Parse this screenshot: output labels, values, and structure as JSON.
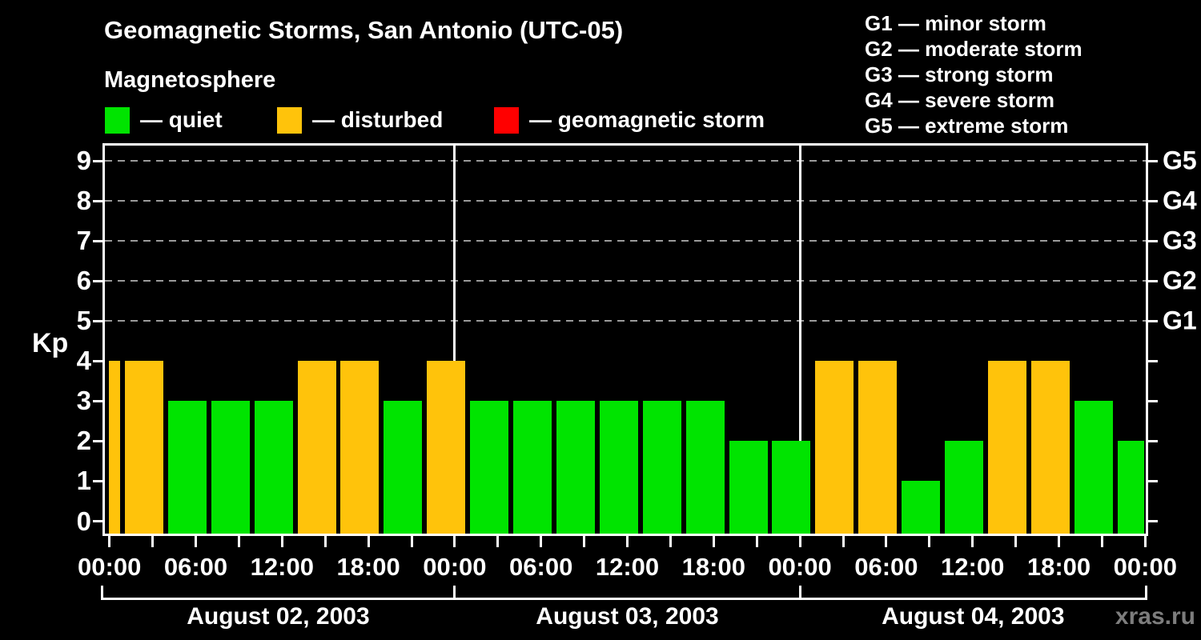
{
  "header": {
    "title": "Geomagnetic Storms, San Antonio (UTC-05)",
    "subtitle": "Magnetosphere"
  },
  "legend": {
    "items": [
      {
        "name": "quiet",
        "label": "— quiet",
        "color": "#00e400"
      },
      {
        "name": "disturbed",
        "label": "— disturbed",
        "color": "#ffc30b"
      },
      {
        "name": "geomagnetic-storm",
        "label": "— geomagnetic storm",
        "color": "#ff0000"
      }
    ]
  },
  "g_scale_legend": {
    "items": [
      "G1 — minor storm",
      "G2 — moderate storm",
      "G3 — strong storm",
      "G4 — severe storm",
      "G5 — extreme storm"
    ]
  },
  "watermark": "xras.ru",
  "colors": {
    "background": "#000000",
    "text": "#ffffff",
    "quiet": "#00e400",
    "disturbed": "#ffc30b",
    "storm": "#ff0000",
    "grid": "#9b9b9b",
    "axis": "#ffffff",
    "watermark": "#7d7d7d"
  },
  "chart_data": {
    "type": "bar",
    "title": "Geomagnetic Storms, San Antonio (UTC-05)",
    "ylabel": "Kp",
    "ylim": [
      0,
      9
    ],
    "interval_hours": 3,
    "grid": "dashed horizontal at Kp 5-9 only",
    "legend_position": "top",
    "yticks": [
      "0",
      "1",
      "2",
      "3",
      "4",
      "5",
      "6",
      "7",
      "8",
      "9"
    ],
    "gridlines_at_kp": [
      5,
      6,
      7,
      8,
      9
    ],
    "right_axis_labels": [
      {
        "text": "G1",
        "kp": 5
      },
      {
        "text": "G2",
        "kp": 6
      },
      {
        "text": "G3",
        "kp": 7
      },
      {
        "text": "G4",
        "kp": 8
      },
      {
        "text": "G5",
        "kp": 9
      }
    ],
    "x_tick_labels": [
      "00:00",
      "06:00",
      "12:00",
      "18:00",
      "00:00",
      "06:00",
      "12:00",
      "18:00",
      "00:00",
      "06:00",
      "12:00",
      "18:00",
      "00:00"
    ],
    "x_tick_step_hours": 3,
    "days": [
      {
        "label": "August 02, 2003",
        "kp": [
          4,
          4,
          3,
          3,
          3,
          4,
          4,
          3
        ]
      },
      {
        "label": "August 03, 2003",
        "kp": [
          4,
          3,
          3,
          3,
          3,
          3,
          3,
          2
        ]
      },
      {
        "label": "August 04, 2003",
        "kp": [
          2,
          4,
          4,
          1,
          2,
          4,
          4,
          3
        ]
      }
    ],
    "next_day_partial_kp": 2,
    "color_rules": {
      "quiet_kp_max": 3,
      "disturbed_kp": 4,
      "storm_kp_min": 5
    }
  }
}
